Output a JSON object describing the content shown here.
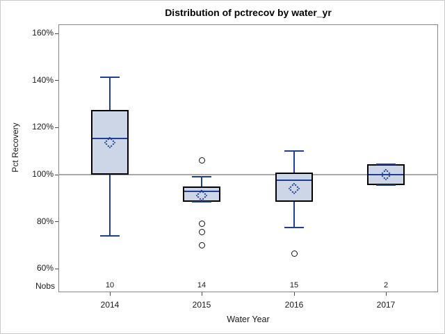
{
  "window": {
    "kind": "statistical-graphics-output"
  },
  "chart_data": {
    "type": "box",
    "title": "Distribution of pctrecov by water_yr",
    "xlabel": "Water Year",
    "ylabel": "Pct Recovery",
    "nobs_label": "Nobs",
    "categories": [
      "2014",
      "2015",
      "2016",
      "2017"
    ],
    "nobs": [
      "10",
      "14",
      "15",
      "2"
    ],
    "y_ticks": [
      {
        "value": 60,
        "label": "60%"
      },
      {
        "value": 80,
        "label": "80%"
      },
      {
        "value": 100,
        "label": "100%"
      },
      {
        "value": 120,
        "label": "120%"
      },
      {
        "value": 140,
        "label": "140%"
      },
      {
        "value": 160,
        "label": "160%"
      }
    ],
    "y_range_shown": [
      57,
      164
    ],
    "reference_line": 100,
    "grid": false,
    "legend": "none",
    "series": [
      {
        "category": "2014",
        "n": 10,
        "whisker_low": 74,
        "q1": 100,
        "median": 115.5,
        "q3": 127.5,
        "whisker_high": 141.5,
        "mean": 113.5,
        "outliers": []
      },
      {
        "category": "2015",
        "n": 14,
        "whisker_low": 88.5,
        "q1": 88.5,
        "median": 93,
        "q3": 95,
        "whisker_high": 99,
        "mean": 91,
        "outliers": [
          106,
          79,
          75.5,
          70
        ]
      },
      {
        "category": "2016",
        "n": 15,
        "whisker_low": 77.5,
        "q1": 88.5,
        "median": 97.5,
        "q3": 101,
        "whisker_high": 110,
        "mean": 94,
        "outliers": [
          66.5
        ]
      },
      {
        "category": "2017",
        "n": 2,
        "whisker_low": 95.5,
        "q1": 95.5,
        "median": 100,
        "q3": 104.5,
        "whisker_high": 104.5,
        "mean": 100,
        "outliers": []
      }
    ],
    "colors": {
      "box_fill": "#ccd6e6",
      "box_border": "#000000",
      "line_blue": "#1c3e94",
      "reference_line": "#a9a9a9",
      "frame_border": "#868686",
      "outlier_stroke": "#111111",
      "text": "#1a1a1a",
      "background": "#ffffff"
    }
  }
}
